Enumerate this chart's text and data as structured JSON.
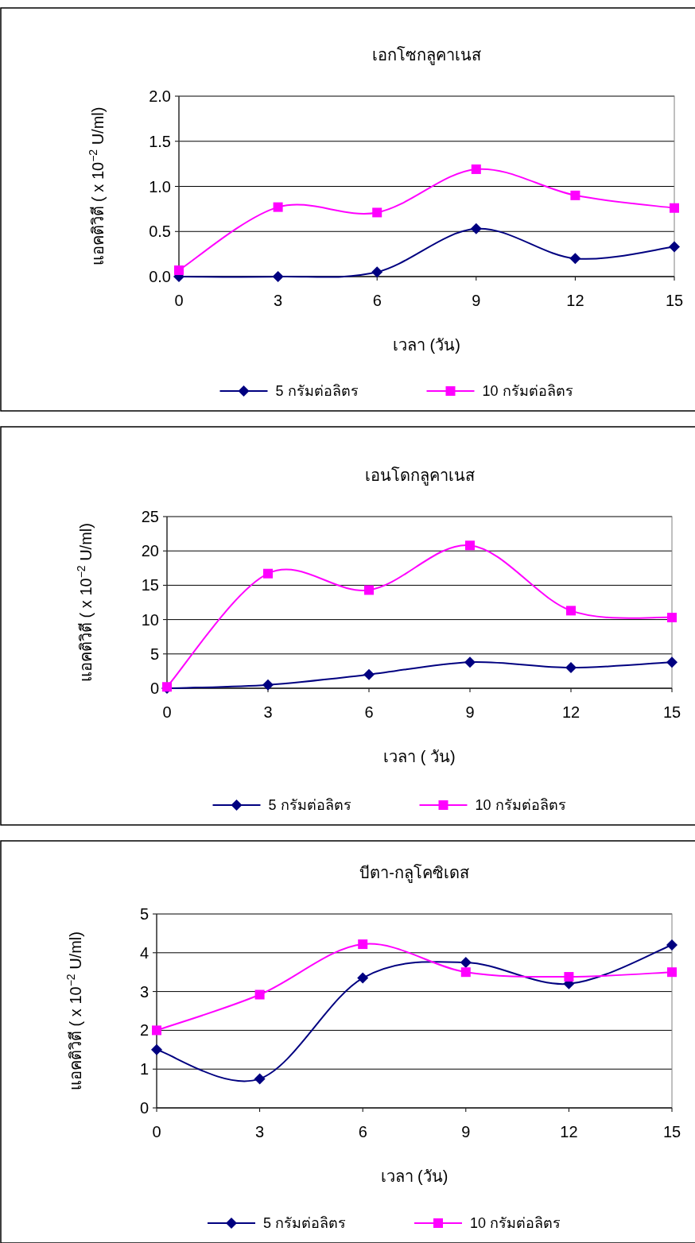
{
  "chart_data": [
    {
      "type": "line",
      "title": "เอกโซกลูคาเนส",
      "xlabel": "เวลา (วัน)",
      "ylabel": "แอคติวิตี ( x 10$^{−2}$ U/ml)",
      "x": [
        0,
        3,
        6,
        9,
        12,
        15
      ],
      "xlim": [
        0,
        15
      ],
      "xticks": [
        0,
        3,
        6,
        9,
        12,
        15
      ],
      "ylim": [
        0,
        2
      ],
      "yticks": [
        {
          "value": 0,
          "label": "0.0"
        },
        0.5,
        {
          "value": 1,
          "label": "1.0"
        },
        1.5,
        {
          "value": 2,
          "label": "2.0"
        }
      ],
      "grid": "y",
      "legend": "bottom",
      "line_style": "solid",
      "series": [
        {
          "name": "5 กรัมต่อลิตร",
          "color": "#000080",
          "marker": "diamond",
          "values": [
            0,
            0,
            0.05,
            0.53,
            0.2,
            0.33
          ]
        },
        {
          "name": "10 กรัมต่อลิตร",
          "color": "#ff00ff",
          "marker": "square",
          "values": [
            0.07,
            0.77,
            0.71,
            1.19,
            0.9,
            0.76
          ]
        }
      ]
    },
    {
      "type": "line",
      "title": "เอนโดกลูคาเนส",
      "xlabel": "เวลา ( วัน)",
      "ylabel": "แอคติวิตี ( x 10$^{−2}$ U/ml)",
      "x": [
        0,
        3,
        6,
        9,
        12,
        15
      ],
      "xlim": [
        0,
        15
      ],
      "xticks": [
        0,
        3,
        6,
        9,
        12,
        15
      ],
      "ylim": [
        0,
        25
      ],
      "yticks": [
        0,
        5,
        10,
        15,
        20,
        25
      ],
      "grid": "y",
      "legend": "bottom",
      "line_style": "solid",
      "series": [
        {
          "name": "5 กรัมต่อลิตร",
          "color": "#000080",
          "marker": "diamond",
          "values": [
            0,
            0.5,
            2,
            3.8,
            3,
            3.8
          ]
        },
        {
          "name": "10 กรัมต่อลิตร",
          "color": "#ff00ff",
          "marker": "square",
          "values": [
            0.2,
            16.7,
            14.3,
            20.8,
            11.3,
            10.3
          ]
        }
      ]
    },
    {
      "type": "line",
      "title": "บีตา-กลูโคซิเดส",
      "xlabel": "เวลา (วัน)",
      "ylabel": "แอคติวิตี ( x 10$^{−2}$ U/ml)",
      "x": [
        0,
        3,
        6,
        9,
        12,
        15
      ],
      "xlim": [
        0,
        15
      ],
      "xticks": [
        0,
        3,
        6,
        9,
        12,
        15
      ],
      "ylim": [
        0,
        5
      ],
      "yticks": [
        0,
        1,
        2,
        3,
        4,
        5
      ],
      "grid": "y",
      "legend": "bottom",
      "line_style": "solid",
      "series": [
        {
          "name": "5 กรัมต่อลิตร",
          "color": "#000080",
          "marker": "diamond",
          "values": [
            1.5,
            0.75,
            3.35,
            3.75,
            3.2,
            4.2
          ]
        },
        {
          "name": "10 กรัมต่อลิตร",
          "color": "#ff00ff",
          "marker": "square",
          "values": [
            2.0,
            2.92,
            4.22,
            3.5,
            3.38,
            3.5
          ]
        }
      ]
    }
  ]
}
